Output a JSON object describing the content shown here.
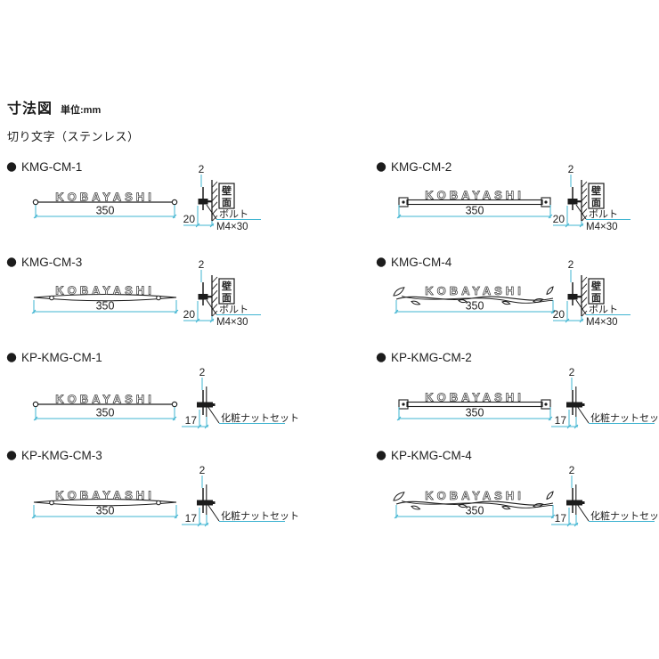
{
  "header": {
    "title": "寸法図",
    "unit": "単位:mm",
    "subtitle": "切り文字（ステンレス）"
  },
  "colors": {
    "dimension": "#3fb4d1",
    "line": "#1c1c1c",
    "text": "#222222",
    "background": "#ffffff"
  },
  "common": {
    "name_text": "KOBAYASHI",
    "width": "350",
    "thickness": "2"
  },
  "side_views": {
    "wall": {
      "depth": "20",
      "wall_label": "壁面",
      "leader_label": "ボルト",
      "leader_sublabel": "M4×30"
    },
    "nut": {
      "depth": "17",
      "leader_label": "化粧ナットセット"
    }
  },
  "products": [
    {
      "code": "KMG-CM-1",
      "front_style": "bar-round-ends",
      "mount": "wall"
    },
    {
      "code": "KMG-CM-2",
      "front_style": "plate-square-ends",
      "mount": "wall"
    },
    {
      "code": "KMG-CM-3",
      "front_style": "arc-bar",
      "mount": "wall"
    },
    {
      "code": "KMG-CM-4",
      "front_style": "vine-bar",
      "mount": "wall"
    },
    {
      "code": "KP-KMG-CM-1",
      "front_style": "bar-round-ends",
      "mount": "nut"
    },
    {
      "code": "KP-KMG-CM-2",
      "front_style": "plate-square-ends",
      "mount": "nut"
    },
    {
      "code": "KP-KMG-CM-3",
      "front_style": "arc-bar",
      "mount": "nut"
    },
    {
      "code": "KP-KMG-CM-4",
      "front_style": "vine-bar",
      "mount": "nut"
    }
  ]
}
